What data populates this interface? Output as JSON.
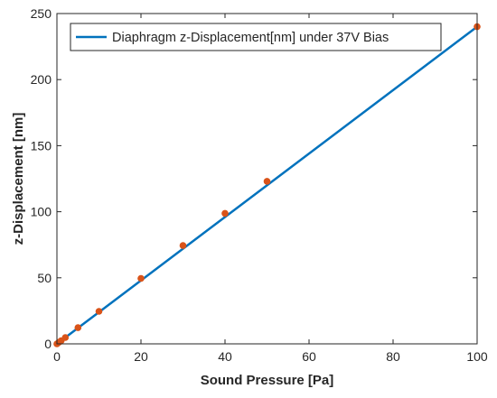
{
  "chart_data": {
    "type": "line",
    "title": "",
    "xlabel": "Sound Pressure [Pa]",
    "ylabel": "z-Displacement [nm]",
    "xlim": [
      0,
      100
    ],
    "ylim": [
      0,
      250
    ],
    "xticks": [
      0,
      20,
      40,
      60,
      80,
      100
    ],
    "yticks": [
      0,
      50,
      100,
      150,
      200,
      250
    ],
    "grid": false,
    "legend_position": "top-right",
    "colors": {
      "line": "#0072bd",
      "markers": "#d95319",
      "axes": "#262626"
    },
    "series": [
      {
        "name": "Diaphragm z-Displacement[nm] under 37V Bias",
        "style": "line",
        "x": [
          0,
          100
        ],
        "y": [
          0,
          240
        ]
      },
      {
        "style": "markers",
        "x": [
          0,
          0.5,
          1,
          2,
          5,
          10,
          20,
          30,
          40,
          50,
          100
        ],
        "y": [
          0,
          1.2,
          2.4,
          4.8,
          12.2,
          24.6,
          49.5,
          74.4,
          98.8,
          123,
          240
        ]
      }
    ]
  }
}
